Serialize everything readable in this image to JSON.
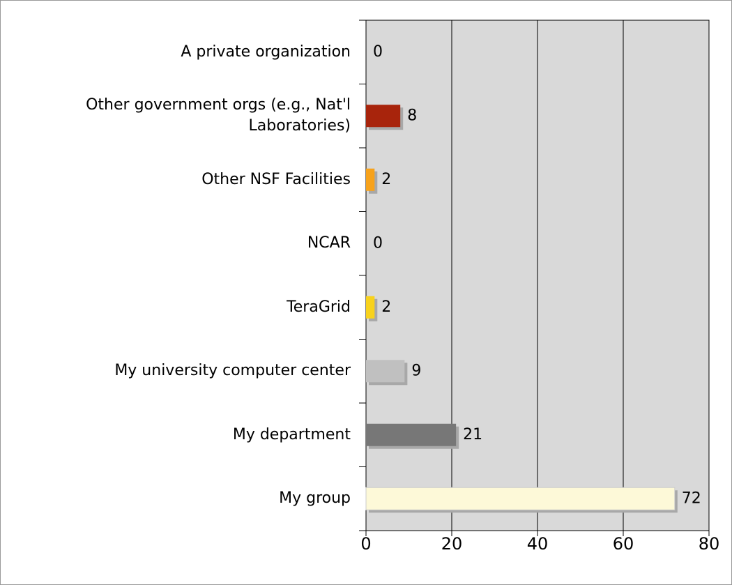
{
  "chart_data": {
    "type": "barh",
    "categories": [
      "A private organization",
      "Other government orgs (e.g., Nat'l Laboratories)",
      "Other NSF Facilities",
      "NCAR",
      "TeraGrid",
      "My university computer center",
      "My department",
      "My group"
    ],
    "values": [
      0,
      8,
      2,
      0,
      2,
      9,
      21,
      72
    ],
    "colors": [
      null,
      "#a8240c",
      "#f7a21b",
      null,
      "#f8d21c",
      "#c0c0c0",
      "#777777",
      "#fdf9d8"
    ],
    "xlim": [
      0,
      80
    ],
    "xticks": [
      0,
      20,
      40,
      60,
      80
    ],
    "grid": true
  }
}
